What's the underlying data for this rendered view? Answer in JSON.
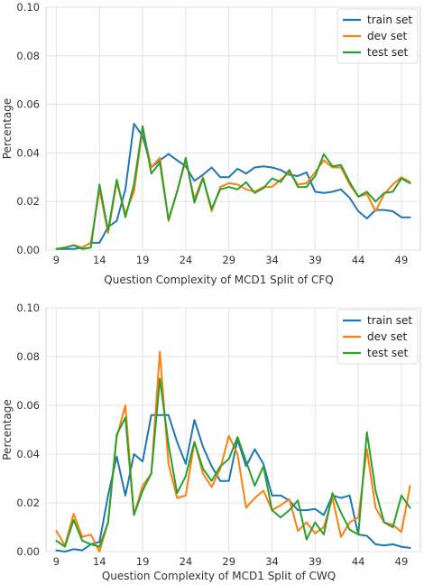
{
  "colors": {
    "train": "#1f77b4",
    "dev": "#ff7f0e",
    "test": "#2ca02c",
    "grid": "#e3e3e3",
    "frame": "#d0d0d0"
  },
  "chart_data": [
    {
      "type": "line",
      "xlabel": "Question Complexity of MCD1 Split of CFQ",
      "ylabel": "Percentage",
      "ylim": [
        0,
        0.1
      ],
      "xlim": [
        7.8,
        51.2
      ],
      "yticks": [
        "0.00",
        "0.02",
        "0.04",
        "0.06",
        "0.08",
        "0.10"
      ],
      "xticks": [
        "9",
        "14",
        "19",
        "24",
        "29",
        "34",
        "39",
        "44",
        "49"
      ],
      "grid": true,
      "legend_position": "top-right",
      "x": [
        9,
        10,
        11,
        12,
        13,
        14,
        15,
        16,
        17,
        18,
        19,
        20,
        21,
        22,
        23,
        24,
        25,
        26,
        27,
        28,
        29,
        30,
        31,
        32,
        33,
        34,
        35,
        36,
        37,
        38,
        39,
        40,
        41,
        42,
        43,
        44,
        45,
        46,
        47,
        48,
        49,
        50
      ],
      "series": [
        {
          "name": "train set",
          "color_key": "train",
          "values": [
            0.0005,
            0.0005,
            0.0005,
            0.001,
            0.003,
            0.003,
            0.0095,
            0.012,
            0.025,
            0.052,
            0.047,
            0.034,
            0.037,
            0.0395,
            0.037,
            0.0345,
            0.0285,
            0.031,
            0.034,
            0.03,
            0.03,
            0.0335,
            0.0315,
            0.034,
            0.0345,
            0.034,
            0.033,
            0.031,
            0.0305,
            0.032,
            0.024,
            0.0235,
            0.024,
            0.025,
            0.0215,
            0.016,
            0.013,
            0.0165,
            0.0165,
            0.016,
            0.0135,
            0.0135
          ]
        },
        {
          "name": "dev set",
          "color_key": "dev",
          "values": [
            0.0005,
            0.001,
            0.002,
            0.001,
            0.003,
            0.025,
            0.007,
            0.028,
            0.015,
            0.024,
            0.05,
            0.034,
            0.038,
            0.012,
            0.024,
            0.037,
            0.021,
            0.03,
            0.016,
            0.026,
            0.0275,
            0.027,
            0.025,
            0.024,
            0.026,
            0.026,
            0.029,
            0.032,
            0.027,
            0.0275,
            0.032,
            0.037,
            0.034,
            0.034,
            0.027,
            0.022,
            0.023,
            0.016,
            0.023,
            0.027,
            0.03,
            0.028
          ]
        },
        {
          "name": "test set",
          "color_key": "test",
          "values": [
            0.0005,
            0.001,
            0.002,
            0.0005,
            0.001,
            0.027,
            0.008,
            0.029,
            0.0135,
            0.027,
            0.051,
            0.0315,
            0.036,
            0.0125,
            0.024,
            0.038,
            0.0195,
            0.0295,
            0.017,
            0.025,
            0.026,
            0.025,
            0.028,
            0.0235,
            0.0255,
            0.0295,
            0.028,
            0.033,
            0.026,
            0.026,
            0.0305,
            0.0395,
            0.0345,
            0.035,
            0.028,
            0.022,
            0.024,
            0.02,
            0.0235,
            0.024,
            0.0295,
            0.0275
          ]
        }
      ]
    },
    {
      "type": "line",
      "xlabel": "Question Complexity of MCD1 Split of CWQ",
      "ylabel": "Percentage",
      "ylim": [
        0,
        0.1
      ],
      "xlim": [
        7.8,
        51.2
      ],
      "yticks": [
        "0.00",
        "0.02",
        "0.04",
        "0.06",
        "0.08",
        "0.10"
      ],
      "xticks": [
        "9",
        "14",
        "19",
        "24",
        "29",
        "34",
        "39",
        "44",
        "49"
      ],
      "grid": true,
      "legend_position": "top-right",
      "x": [
        9,
        10,
        11,
        12,
        13,
        14,
        15,
        16,
        17,
        18,
        19,
        20,
        21,
        22,
        23,
        24,
        25,
        26,
        27,
        28,
        29,
        30,
        31,
        32,
        33,
        34,
        35,
        36,
        37,
        38,
        39,
        40,
        41,
        42,
        43,
        44,
        45,
        46,
        47,
        48,
        49,
        50
      ],
      "series": [
        {
          "name": "train set",
          "color_key": "train",
          "values": [
            0.0005,
            0.0,
            0.001,
            0.0005,
            0.003,
            0.004,
            0.023,
            0.039,
            0.023,
            0.04,
            0.037,
            0.056,
            0.056,
            0.056,
            0.045,
            0.036,
            0.054,
            0.043,
            0.035,
            0.029,
            0.029,
            0.046,
            0.035,
            0.042,
            0.036,
            0.023,
            0.023,
            0.021,
            0.017,
            0.017,
            0.0175,
            0.015,
            0.023,
            0.022,
            0.023,
            0.007,
            0.0065,
            0.003,
            0.0025,
            0.003,
            0.002,
            0.0015
          ]
        },
        {
          "name": "dev set",
          "color_key": "dev",
          "values": [
            0.0085,
            0.0025,
            0.0155,
            0.006,
            0.007,
            0.0,
            0.012,
            0.047,
            0.06,
            0.015,
            0.027,
            0.032,
            0.082,
            0.036,
            0.022,
            0.023,
            0.045,
            0.032,
            0.0265,
            0.034,
            0.0475,
            0.04,
            0.018,
            0.022,
            0.025,
            0.017,
            0.019,
            0.0215,
            0.0085,
            0.012,
            0.0075,
            0.01,
            0.022,
            0.006,
            0.012,
            0.014,
            0.042,
            0.018,
            0.012,
            0.011,
            0.008,
            0.027
          ]
        },
        {
          "name": "test set",
          "color_key": "test",
          "values": [
            0.0045,
            0.002,
            0.013,
            0.0045,
            0.003,
            0.002,
            0.012,
            0.048,
            0.055,
            0.015,
            0.025,
            0.032,
            0.071,
            0.044,
            0.024,
            0.031,
            0.045,
            0.034,
            0.029,
            0.035,
            0.038,
            0.047,
            0.037,
            0.027,
            0.035,
            0.017,
            0.014,
            0.017,
            0.021,
            0.005,
            0.012,
            0.007,
            0.024,
            0.016,
            0.009,
            0.007,
            0.049,
            0.025,
            0.012,
            0.01,
            0.023,
            0.018
          ]
        }
      ]
    }
  ]
}
